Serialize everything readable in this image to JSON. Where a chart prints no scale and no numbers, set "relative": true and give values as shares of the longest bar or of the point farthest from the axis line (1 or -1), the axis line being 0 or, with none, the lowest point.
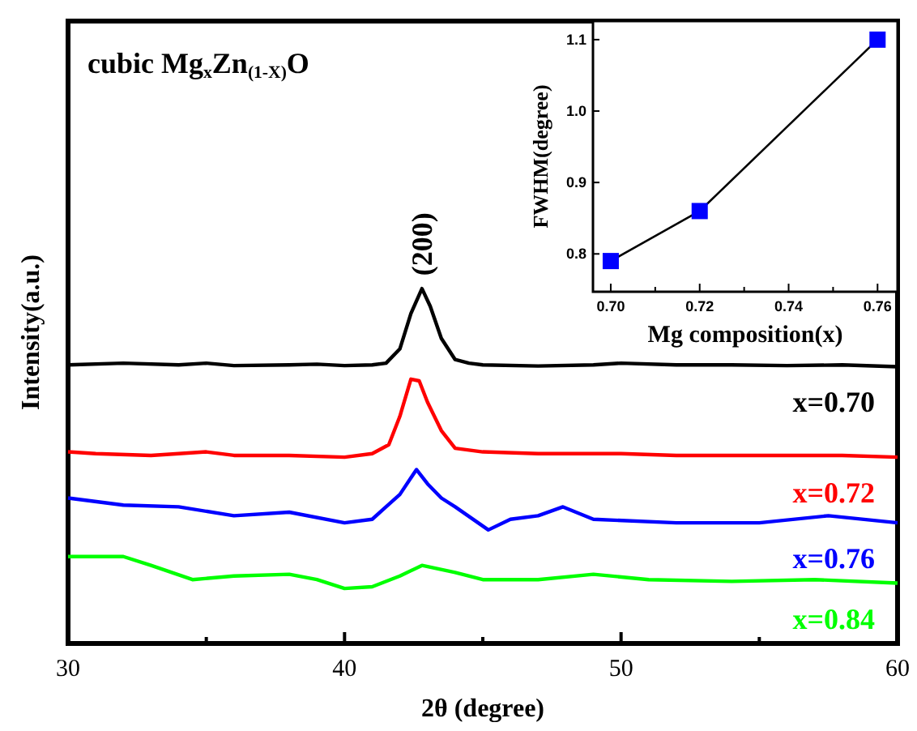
{
  "chart_data": [
    {
      "type": "line",
      "relative": true,
      "title": "cubic Mg$_{x}$Zn$_{(1-X)}$O",
      "xlabel": "2θ (degree)",
      "ylabel": "Intensity(a.u.)",
      "xlim": [
        30,
        60
      ],
      "xticks": [
        30,
        {
          "value": 35,
          "label": null
        },
        40,
        {
          "value": 45,
          "label": null
        },
        50,
        {
          "value": 55,
          "label": null
        },
        60
      ],
      "annotations": [
        {
          "text": "(200)",
          "x": 42.8,
          "y": 1.0
        }
      ],
      "series": [
        {
          "name": "x=0.70",
          "color": "#000000",
          "x": [
            30,
            32,
            34,
            35,
            36,
            38,
            39,
            40,
            41,
            41.5,
            42,
            42.4,
            42.8,
            43.1,
            43.5,
            44,
            44.5,
            45,
            47,
            49,
            50,
            52,
            54,
            56,
            58,
            60
          ],
          "values": [
            0.785,
            0.79,
            0.785,
            0.79,
            0.783,
            0.785,
            0.787,
            0.783,
            0.785,
            0.79,
            0.83,
            0.93,
            1.0,
            0.95,
            0.86,
            0.8,
            0.79,
            0.785,
            0.782,
            0.785,
            0.79,
            0.785,
            0.785,
            0.783,
            0.785,
            0.78
          ]
        },
        {
          "name": "x=0.72",
          "color": "#ff0000",
          "x": [
            30,
            31,
            33,
            35,
            36,
            38,
            40,
            41,
            41.6,
            42,
            42.4,
            42.7,
            43,
            43.5,
            44,
            45,
            47,
            50,
            52,
            55,
            58,
            60
          ],
          "values": [
            0.54,
            0.535,
            0.53,
            0.54,
            0.53,
            0.53,
            0.525,
            0.535,
            0.56,
            0.64,
            0.745,
            0.74,
            0.68,
            0.6,
            0.55,
            0.54,
            0.535,
            0.535,
            0.53,
            0.53,
            0.53,
            0.525
          ]
        },
        {
          "name": "x=0.76",
          "color": "#0000ff",
          "x": [
            30,
            32,
            34,
            36,
            38,
            40,
            41,
            41.5,
            42,
            42.6,
            43,
            43.5,
            44,
            45.2,
            46,
            47,
            47.9,
            49,
            52,
            55,
            57.5,
            60
          ],
          "values": [
            0.41,
            0.39,
            0.385,
            0.36,
            0.37,
            0.34,
            0.35,
            0.385,
            0.42,
            0.49,
            0.45,
            0.41,
            0.385,
            0.32,
            0.35,
            0.36,
            0.385,
            0.35,
            0.34,
            0.34,
            0.36,
            0.34
          ]
        },
        {
          "name": "x=0.84",
          "color": "#00ff00",
          "x": [
            30,
            32,
            33,
            34.5,
            36,
            38,
            39,
            40,
            41,
            42,
            42.8,
            44,
            45,
            47,
            49,
            51,
            54,
            57,
            60
          ],
          "values": [
            0.245,
            0.245,
            0.22,
            0.18,
            0.19,
            0.195,
            0.18,
            0.155,
            0.16,
            0.19,
            0.22,
            0.2,
            0.18,
            0.18,
            0.195,
            0.18,
            0.175,
            0.18,
            0.17
          ]
        }
      ]
    },
    {
      "type": "line",
      "marker": "square",
      "xlabel": "Mg composition(x)",
      "ylabel": "FWHM(degree)",
      "xlim": [
        0.696,
        0.7645
      ],
      "ylim": [
        0.747,
        1.126
      ],
      "xticks": [
        {
          "value": 0.7,
          "label": "0.70"
        },
        {
          "value": 0.71,
          "label": null
        },
        0.72,
        {
          "value": 0.73,
          "label": null
        },
        0.74,
        {
          "value": 0.75,
          "label": null
        },
        0.76
      ],
      "yticks": [
        0.8,
        0.9,
        {
          "value": 1.0,
          "label": "1.0"
        },
        1.1
      ],
      "series": [
        {
          "color": "#000000",
          "colors": [
            "#0000ff",
            "#0000ff",
            "#0000ff"
          ],
          "x": [
            0.7,
            0.72,
            0.76
          ],
          "values": [
            0.79,
            0.86,
            1.1
          ]
        }
      ]
    }
  ]
}
